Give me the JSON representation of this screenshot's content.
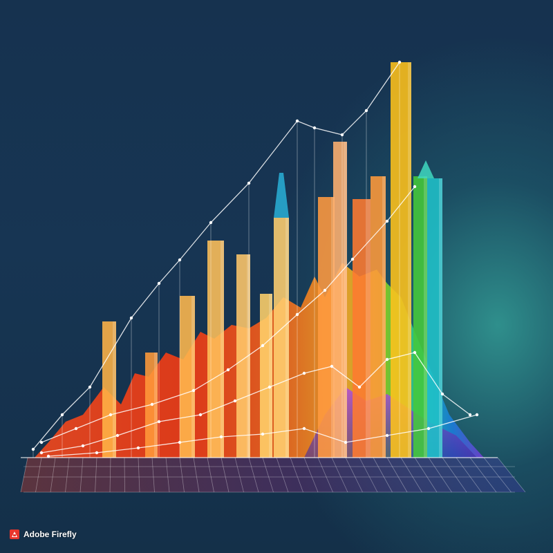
{
  "image": {
    "type": "3d-abstract-chart-illustration"
  },
  "watermark": {
    "text": "Adobe Firefly",
    "icon": "adobe-logo-icon",
    "color": "#e8362c"
  }
}
